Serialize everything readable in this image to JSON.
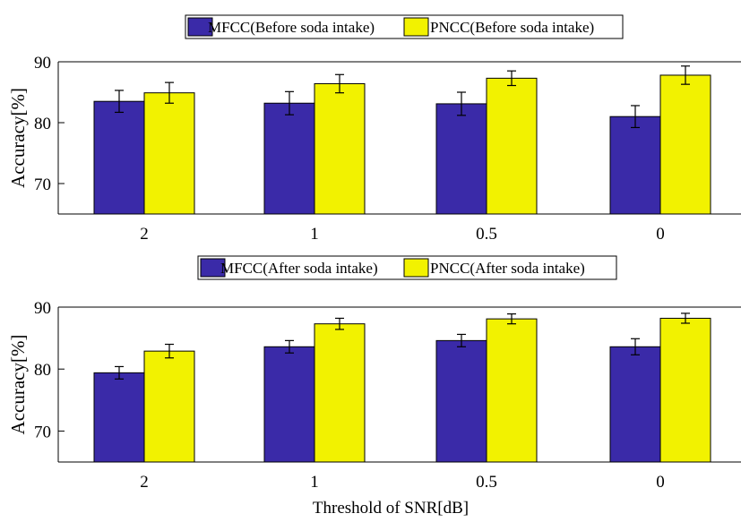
{
  "chart_data": [
    {
      "type": "bar",
      "categories": [
        "2",
        "1",
        "0.5",
        "0"
      ],
      "series": [
        {
          "name": "MFCC(Before soda intake)",
          "values": [
            83.5,
            83.2,
            83.1,
            81.0
          ],
          "errors": [
            1.8,
            1.9,
            1.9,
            1.8
          ],
          "color": "#3a2aa8"
        },
        {
          "name": "PNCC(Before soda intake)",
          "values": [
            84.9,
            86.4,
            87.3,
            87.8
          ],
          "errors": [
            1.7,
            1.5,
            1.2,
            1.5
          ],
          "color": "#f2f200"
        }
      ],
      "ylabel": "Accuracy[%]",
      "xlabel": "",
      "ylim": [
        65,
        90
      ],
      "yticks": [
        "70",
        "80",
        "90"
      ],
      "legend_position": "top",
      "grid": false
    },
    {
      "type": "bar",
      "categories": [
        "2",
        "1",
        "0.5",
        "0"
      ],
      "series": [
        {
          "name": "MFCC(After soda intake)",
          "values": [
            79.4,
            83.6,
            84.6,
            83.6
          ],
          "errors": [
            1.0,
            1.0,
            1.0,
            1.3
          ],
          "color": "#3a2aa8"
        },
        {
          "name": "PNCC(After soda intake)",
          "values": [
            82.9,
            87.3,
            88.1,
            88.2
          ],
          "errors": [
            1.1,
            0.9,
            0.8,
            0.8
          ],
          "color": "#f2f200"
        }
      ],
      "ylabel": "Accuracy[%]",
      "xlabel": "Threshold of SNR[dB]",
      "ylim": [
        65,
        90
      ],
      "yticks": [
        "70",
        "80",
        "90"
      ],
      "legend_position": "top",
      "grid": false
    }
  ]
}
